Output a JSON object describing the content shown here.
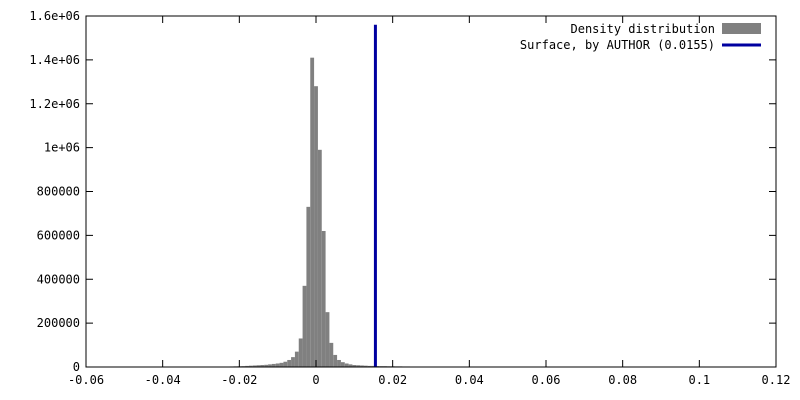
{
  "chart_data": {
    "type": "bar",
    "title": "",
    "xlabel": "",
    "ylabel": "",
    "xlim": [
      -0.06,
      0.12
    ],
    "ylim": [
      0,
      1600000
    ],
    "grid": false,
    "legend_position": "top-right",
    "x_ticks": [
      -0.06,
      -0.04,
      -0.02,
      0,
      0.02,
      0.04,
      0.06,
      0.08,
      0.1,
      0.12
    ],
    "x_tick_labels": [
      "-0.06",
      "-0.04",
      "-0.02",
      "0",
      "0.02",
      "0.04",
      "0.06",
      "0.08",
      "0.1",
      "0.12"
    ],
    "y_ticks": [
      0,
      200000,
      400000,
      600000,
      800000,
      1000000,
      1200000,
      1400000,
      1600000
    ],
    "y_tick_labels": [
      "0",
      "200000",
      "400000",
      "600000",
      "800000",
      "1e+06",
      "1.2e+06",
      "1.4e+06",
      "1.6e+06"
    ],
    "series": [
      {
        "name": "Density distribution",
        "kind": "histogram",
        "color": "#808080",
        "bin_width": 0.001,
        "x": [
          -0.025,
          -0.024,
          -0.023,
          -0.022,
          -0.021,
          -0.02,
          -0.019,
          -0.018,
          -0.017,
          -0.016,
          -0.015,
          -0.014,
          -0.013,
          -0.012,
          -0.011,
          -0.01,
          -0.009,
          -0.008,
          -0.007,
          -0.006,
          -0.005,
          -0.004,
          -0.003,
          -0.002,
          -0.001,
          0,
          0.001,
          0.002,
          0.003,
          0.004,
          0.005,
          0.006,
          0.007,
          0.008,
          0.009,
          0.01,
          0.011,
          0.012,
          0.013,
          0.014,
          0.015,
          0.016,
          0.017,
          0.018,
          0.019,
          0.02,
          0.021,
          0.022,
          0.023,
          0.024,
          0.025,
          0.026,
          0.027,
          0.028,
          0.029,
          0.03,
          0.031,
          0.032,
          0.033,
          0.034,
          0.035
        ],
        "values": [
          1000,
          1500,
          2000,
          2500,
          3000,
          3500,
          4000,
          5000,
          6000,
          7000,
          8000,
          9000,
          10000,
          12000,
          14000,
          16000,
          19000,
          24000,
          32000,
          45000,
          70000,
          130000,
          370000,
          730000,
          1410000,
          1280000,
          990000,
          620000,
          250000,
          110000,
          55000,
          32000,
          22000,
          16000,
          12000,
          9000,
          8000,
          7000,
          6000,
          5000,
          5000,
          4500,
          4000,
          4000,
          3500,
          3500,
          3000,
          3000,
          2500,
          2500,
          2000,
          2000,
          2000,
          1500,
          1500,
          1500,
          1000,
          1000,
          1000,
          1000,
          1000
        ]
      },
      {
        "name": "Surface, by AUTHOR (0.0155)",
        "kind": "vertical_line",
        "color": "#0000a0",
        "x": 0.0155,
        "y_top": 1560000
      }
    ]
  }
}
